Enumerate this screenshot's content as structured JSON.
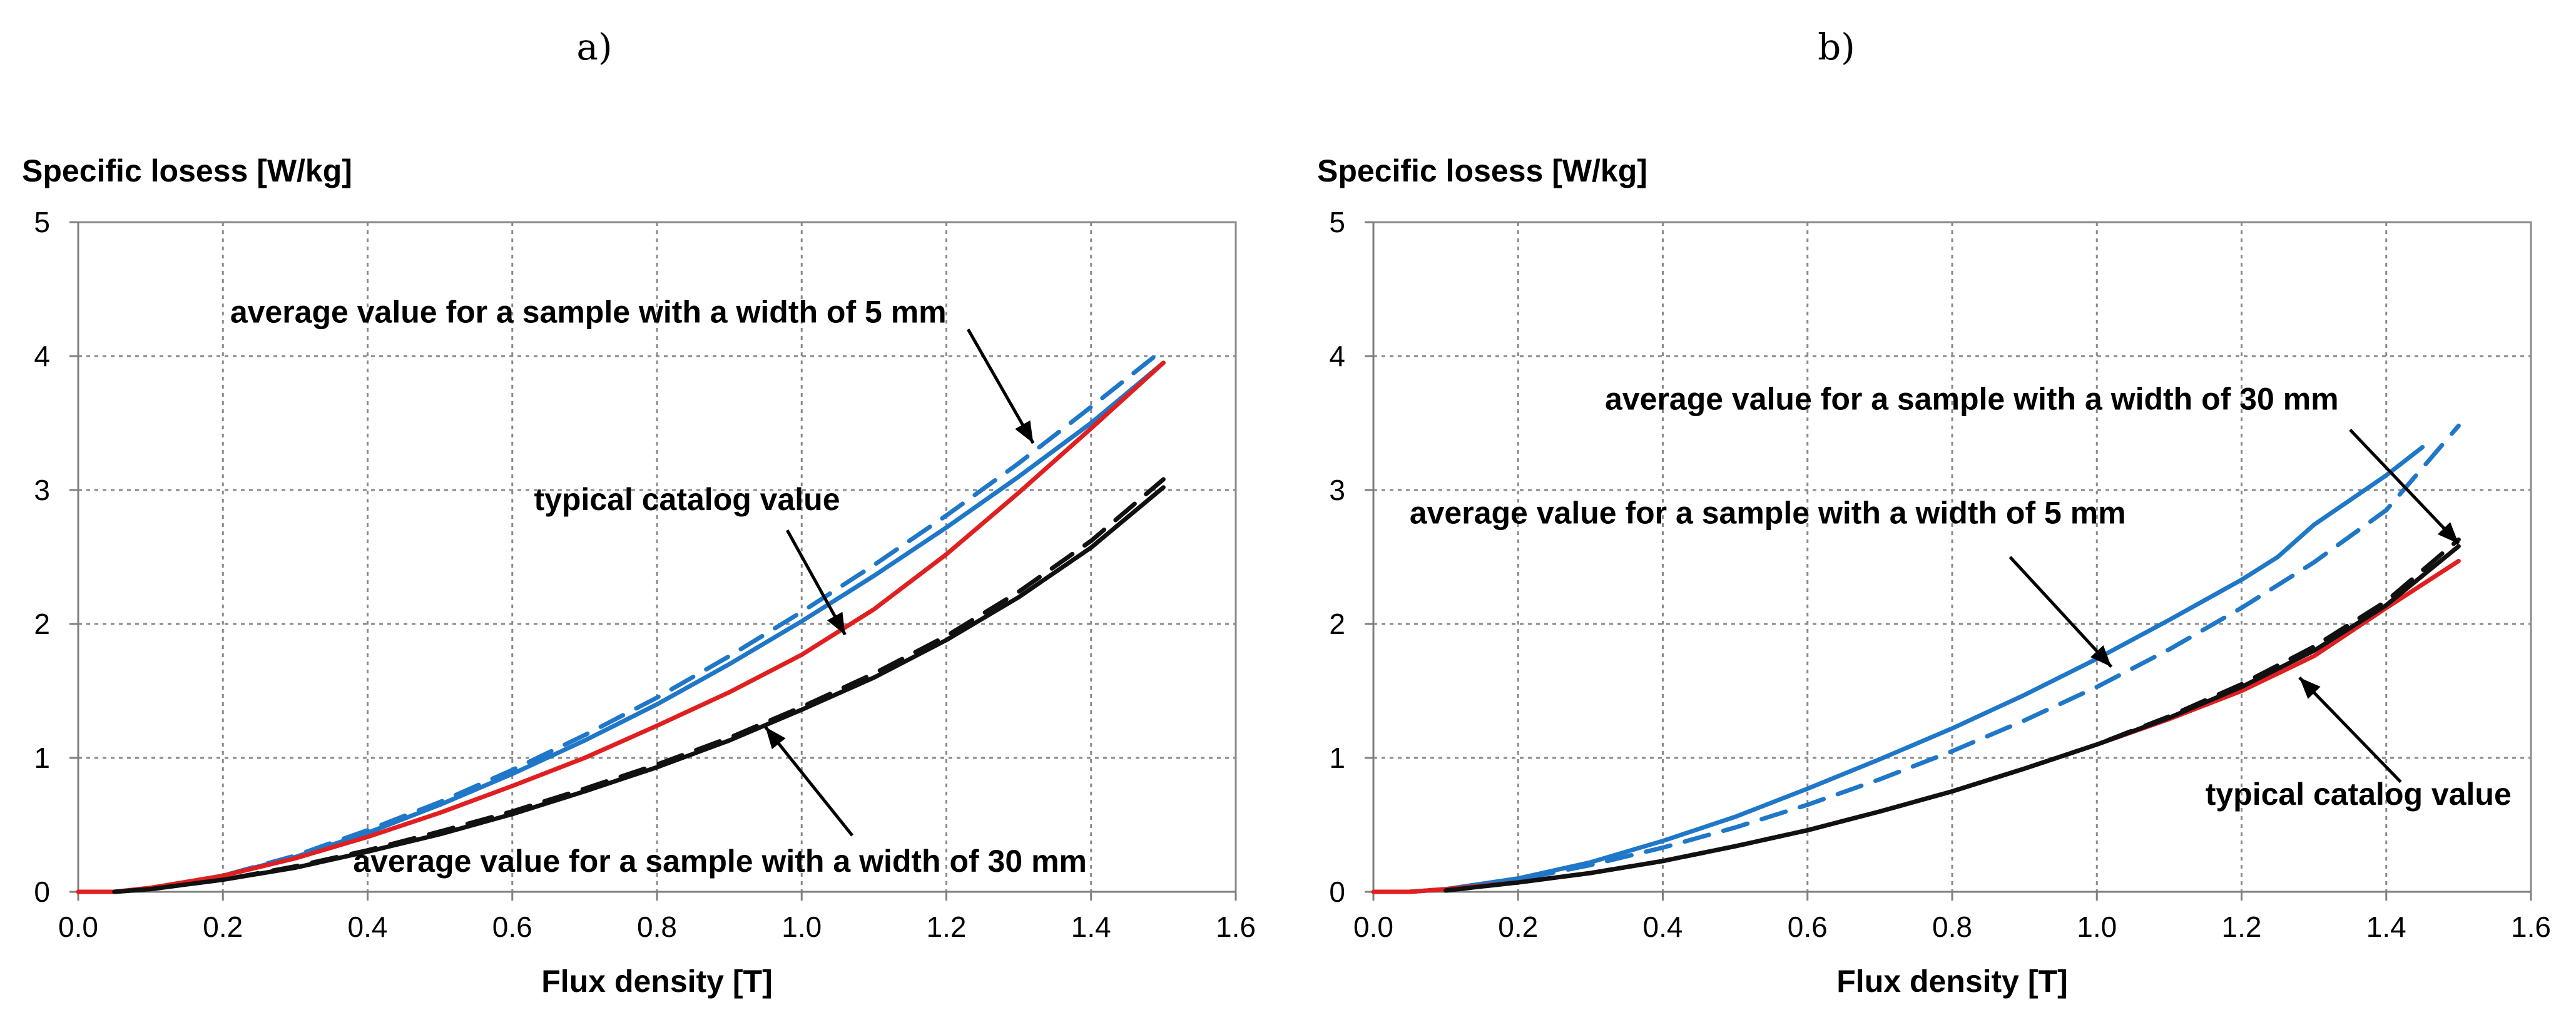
{
  "chart_data": [
    {
      "panel_label": "a)",
      "type": "line",
      "xlabel": "Flux density [T]",
      "ylabel": "Specific losess [W/kg]",
      "xlim": [
        0,
        1.6
      ],
      "ylim": [
        0,
        5
      ],
      "xticks": [
        "0.0",
        "0.2",
        "0.4",
        "0.6",
        "0.8",
        "1.0",
        "1.2",
        "1.4",
        "1.6"
      ],
      "yticks": [
        "0",
        "1",
        "2",
        "3",
        "4",
        "5"
      ],
      "grid": true,
      "series": [
        {
          "color": "#1f77c8",
          "dash": false,
          "points": [
            [
              0.1,
              0.02
            ],
            [
              0.2,
              0.12
            ],
            [
              0.3,
              0.26
            ],
            [
              0.4,
              0.44
            ],
            [
              0.5,
              0.65
            ],
            [
              0.6,
              0.88
            ],
            [
              0.7,
              1.13
            ],
            [
              0.8,
              1.4
            ],
            [
              0.9,
              1.7
            ],
            [
              1.0,
              2.02
            ],
            [
              1.1,
              2.36
            ],
            [
              1.2,
              2.72
            ],
            [
              1.3,
              3.1
            ],
            [
              1.4,
              3.5
            ],
            [
              1.5,
              3.95
            ]
          ]
        },
        {
          "color": "#1f77c8",
          "dash": true,
          "points": [
            [
              0.1,
              0.02
            ],
            [
              0.2,
              0.12
            ],
            [
              0.3,
              0.27
            ],
            [
              0.4,
              0.46
            ],
            [
              0.5,
              0.67
            ],
            [
              0.6,
              0.91
            ],
            [
              0.7,
              1.17
            ],
            [
              0.8,
              1.45
            ],
            [
              0.9,
              1.76
            ],
            [
              1.0,
              2.09
            ],
            [
              1.1,
              2.44
            ],
            [
              1.2,
              2.81
            ],
            [
              1.3,
              3.2
            ],
            [
              1.4,
              3.62
            ],
            [
              1.5,
              4.05
            ]
          ]
        },
        {
          "color": "#e02020",
          "dash": false,
          "points": [
            [
              0.0,
              0.0
            ],
            [
              0.05,
              0.0
            ],
            [
              0.1,
              0.03
            ],
            [
              0.2,
              0.12
            ],
            [
              0.3,
              0.25
            ],
            [
              0.4,
              0.41
            ],
            [
              0.5,
              0.59
            ],
            [
              0.6,
              0.79
            ],
            [
              0.7,
              1.0
            ],
            [
              0.8,
              1.24
            ],
            [
              0.9,
              1.49
            ],
            [
              1.0,
              1.77
            ],
            [
              1.1,
              2.11
            ],
            [
              1.2,
              2.52
            ],
            [
              1.3,
              2.98
            ],
            [
              1.4,
              3.46
            ],
            [
              1.5,
              3.95
            ]
          ]
        },
        {
          "color": "#111111",
          "dash": false,
          "points": [
            [
              0.05,
              0.0
            ],
            [
              0.1,
              0.02
            ],
            [
              0.2,
              0.09
            ],
            [
              0.3,
              0.18
            ],
            [
              0.4,
              0.3
            ],
            [
              0.5,
              0.43
            ],
            [
              0.6,
              0.58
            ],
            [
              0.7,
              0.75
            ],
            [
              0.8,
              0.93
            ],
            [
              0.9,
              1.13
            ],
            [
              1.0,
              1.36
            ],
            [
              1.1,
              1.6
            ],
            [
              1.2,
              1.88
            ],
            [
              1.3,
              2.2
            ],
            [
              1.4,
              2.57
            ],
            [
              1.5,
              3.02
            ]
          ]
        },
        {
          "color": "#111111",
          "dash": true,
          "points": [
            [
              0.05,
              0.0
            ],
            [
              0.1,
              0.02
            ],
            [
              0.2,
              0.09
            ],
            [
              0.3,
              0.19
            ],
            [
              0.4,
              0.31
            ],
            [
              0.5,
              0.45
            ],
            [
              0.6,
              0.6
            ],
            [
              0.7,
              0.77
            ],
            [
              0.8,
              0.95
            ],
            [
              0.9,
              1.15
            ],
            [
              1.0,
              1.38
            ],
            [
              1.1,
              1.63
            ],
            [
              1.2,
              1.91
            ],
            [
              1.3,
              2.24
            ],
            [
              1.4,
              2.62
            ],
            [
              1.5,
              3.08
            ]
          ]
        }
      ],
      "annotations": [
        {
          "text": "average value for a sample with a width of 5 mm",
          "x": 0.21,
          "y": 4.25,
          "arrow_from": [
            1.23,
            4.2
          ],
          "arrow_to": [
            1.32,
            3.35
          ]
        },
        {
          "text": "typical catalog value",
          "x": 0.63,
          "y": 2.85,
          "arrow_from": [
            0.98,
            2.7
          ],
          "arrow_to": [
            1.06,
            1.92
          ]
        },
        {
          "text": "average value for a sample with a width of 30 mm",
          "x": 0.38,
          "y": 0.15,
          "arrow_from": [
            1.07,
            0.42
          ],
          "arrow_to": [
            0.95,
            1.23
          ]
        }
      ]
    },
    {
      "panel_label": "b)",
      "type": "line",
      "xlabel": "Flux density [T]",
      "ylabel": "Specific losess [W/kg]",
      "xlim": [
        0,
        1.6
      ],
      "ylim": [
        0,
        5
      ],
      "xticks": [
        "0.0",
        "0.2",
        "0.4",
        "0.6",
        "0.8",
        "1.0",
        "1.2",
        "1.4",
        "1.6"
      ],
      "yticks": [
        "0",
        "1",
        "2",
        "3",
        "4",
        "5"
      ],
      "grid": true,
      "series": [
        {
          "color": "#1f77c8",
          "dash": false,
          "points": [
            [
              0.05,
              0.0
            ],
            [
              0.1,
              0.02
            ],
            [
              0.2,
              0.1
            ],
            [
              0.3,
              0.22
            ],
            [
              0.4,
              0.38
            ],
            [
              0.5,
              0.56
            ],
            [
              0.6,
              0.77
            ],
            [
              0.7,
              0.99
            ],
            [
              0.8,
              1.22
            ],
            [
              0.9,
              1.47
            ],
            [
              1.0,
              1.74
            ],
            [
              1.1,
              2.03
            ],
            [
              1.2,
              2.33
            ],
            [
              1.25,
              2.5
            ],
            [
              1.3,
              2.74
            ],
            [
              1.4,
              3.11
            ],
            [
              1.45,
              3.32
            ]
          ]
        },
        {
          "color": "#1f77c8",
          "dash": true,
          "points": [
            [
              0.05,
              0.0
            ],
            [
              0.1,
              0.02
            ],
            [
              0.2,
              0.09
            ],
            [
              0.3,
              0.2
            ],
            [
              0.4,
              0.33
            ],
            [
              0.5,
              0.48
            ],
            [
              0.6,
              0.65
            ],
            [
              0.7,
              0.84
            ],
            [
              0.8,
              1.05
            ],
            [
              0.9,
              1.28
            ],
            [
              1.0,
              1.53
            ],
            [
              1.1,
              1.81
            ],
            [
              1.2,
              2.12
            ],
            [
              1.3,
              2.46
            ],
            [
              1.4,
              2.85
            ],
            [
              1.5,
              3.48
            ]
          ]
        },
        {
          "color": "#e02020",
          "dash": false,
          "points": [
            [
              0.0,
              0.0
            ],
            [
              0.05,
              0.0
            ],
            [
              0.1,
              0.02
            ],
            [
              0.2,
              0.07
            ],
            [
              0.3,
              0.14
            ],
            [
              0.4,
              0.23
            ],
            [
              0.5,
              0.34
            ],
            [
              0.6,
              0.46
            ],
            [
              0.7,
              0.6
            ],
            [
              0.8,
              0.75
            ],
            [
              0.9,
              0.92
            ],
            [
              1.0,
              1.1
            ],
            [
              1.1,
              1.29
            ],
            [
              1.2,
              1.5
            ],
            [
              1.3,
              1.76
            ],
            [
              1.4,
              2.12
            ],
            [
              1.5,
              2.47
            ]
          ]
        },
        {
          "color": "#111111",
          "dash": false,
          "points": [
            [
              0.1,
              0.01
            ],
            [
              0.2,
              0.07
            ],
            [
              0.3,
              0.14
            ],
            [
              0.4,
              0.23
            ],
            [
              0.5,
              0.34
            ],
            [
              0.6,
              0.46
            ],
            [
              0.7,
              0.6
            ],
            [
              0.8,
              0.75
            ],
            [
              0.9,
              0.92
            ],
            [
              1.0,
              1.1
            ],
            [
              1.1,
              1.3
            ],
            [
              1.2,
              1.53
            ],
            [
              1.3,
              1.8
            ],
            [
              1.4,
              2.14
            ],
            [
              1.5,
              2.58
            ]
          ]
        },
        {
          "color": "#111111",
          "dash": true,
          "points": [
            [
              0.1,
              0.01
            ],
            [
              0.2,
              0.07
            ],
            [
              0.3,
              0.14
            ],
            [
              0.4,
              0.23
            ],
            [
              0.5,
              0.34
            ],
            [
              0.6,
              0.46
            ],
            [
              0.7,
              0.6
            ],
            [
              0.8,
              0.75
            ],
            [
              0.9,
              0.92
            ],
            [
              1.0,
              1.1
            ],
            [
              1.1,
              1.31
            ],
            [
              1.2,
              1.55
            ],
            [
              1.3,
              1.83
            ],
            [
              1.4,
              2.17
            ],
            [
              1.5,
              2.63
            ]
          ]
        }
      ],
      "annotations": [
        {
          "text": "average value for a sample with a width of 30 mm",
          "x": 0.32,
          "y": 3.6,
          "arrow_from": [
            1.35,
            3.45
          ],
          "arrow_to": [
            1.5,
            2.6
          ]
        },
        {
          "text": "average value for a sample with a width of 5 mm",
          "x": 0.05,
          "y": 2.75,
          "arrow_from": [
            0.88,
            2.5
          ],
          "arrow_to": [
            1.02,
            1.68
          ]
        },
        {
          "text": "typical catalog value",
          "x": 1.15,
          "y": 0.65,
          "arrow_from": [
            1.42,
            0.82
          ],
          "arrow_to": [
            1.28,
            1.6
          ]
        }
      ]
    }
  ]
}
